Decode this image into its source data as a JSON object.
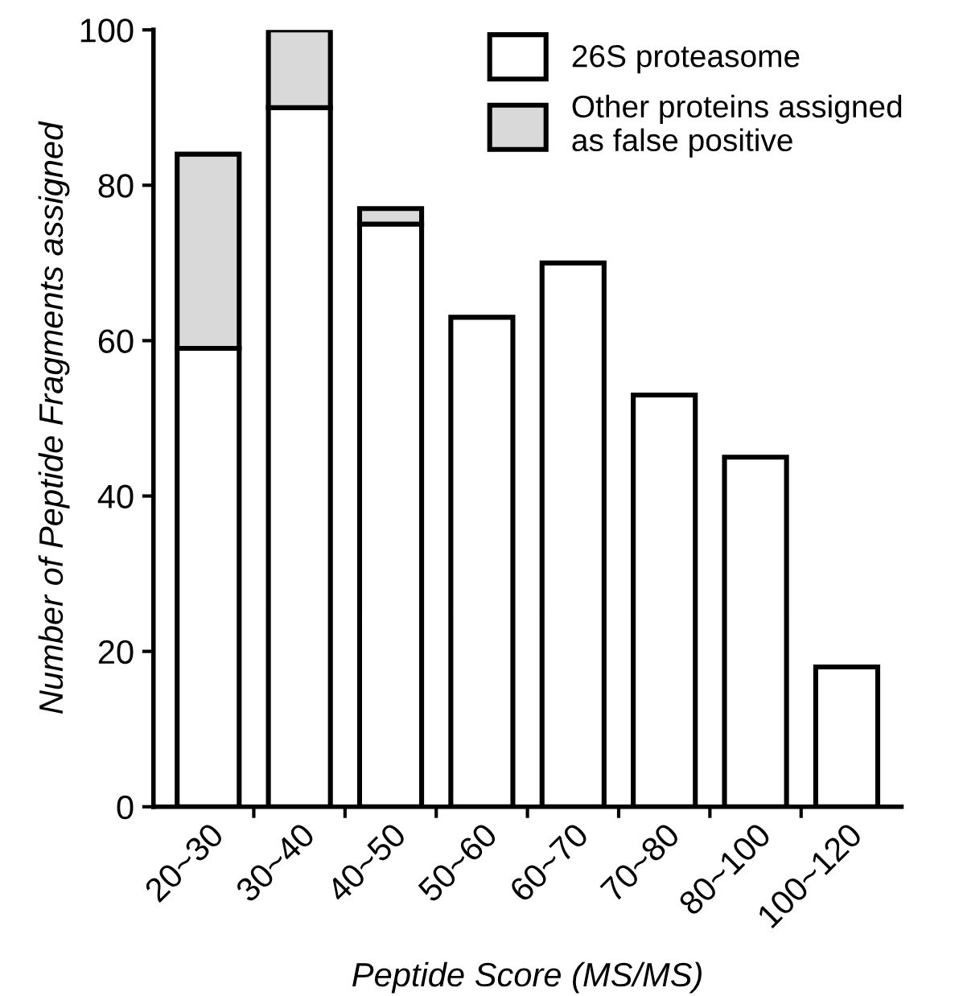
{
  "chart_data": {
    "type": "bar",
    "stacked": true,
    "categories": [
      "20~30",
      "30~40",
      "40~50",
      "50~60",
      "60~70",
      "70~80",
      "80~100",
      "100~120"
    ],
    "series": [
      {
        "name": "26S proteasome",
        "color": "#ffffff",
        "values": [
          59,
          90,
          75,
          63,
          70,
          53,
          45,
          18
        ]
      },
      {
        "name": "Other proteins assigned\nas false positive",
        "color": "#d9d9d9",
        "values": [
          25,
          10,
          2,
          null,
          null,
          null,
          null,
          null
        ]
      }
    ],
    "xlabel": "Peptide Score (MS/MS)",
    "ylabel": "Number of Peptide Fragments assigned",
    "ylim": [
      0,
      100
    ],
    "yticks": [
      0,
      20,
      40,
      60,
      80,
      100
    ],
    "grid": false,
    "legend": "top right"
  }
}
